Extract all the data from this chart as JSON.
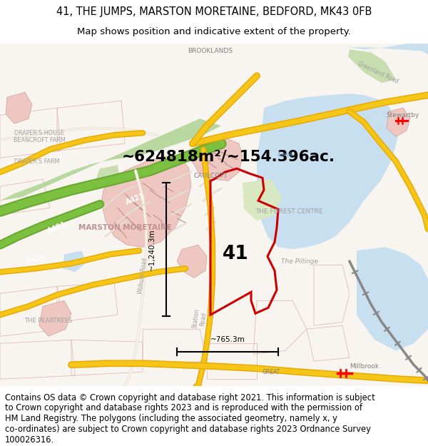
{
  "title_line1": "41, THE JUMPS, MARSTON MORETAINE, BEDFORD, MK43 0FB",
  "title_line2": "Map shows position and indicative extent of the property.",
  "area_text": "~624818m²/~154.396ac.",
  "label_41": "41",
  "width_label": "~765.3m",
  "height_label": "~1,240.3m",
  "bg_color": "#ffffff",
  "water_color": "#c8dff0",
  "urban_fill": "#e8c0b8",
  "road_yellow": "#f5c518",
  "road_outline": "#e0a800",
  "green_road_fill": "#8bbf6e",
  "property_color": "#cc0000",
  "dim_color": "#000000",
  "footer_lines": [
    "Contains OS data © Crown copyright and database right 2021. This information is subject",
    "to Crown copyright and database rights 2023 and is reproduced with the permission of",
    "HM Land Registry. The polygons (including the associated geometry, namely x, y",
    "co-ordinates) are subject to Crown copyright and database rights 2023 Ordnance Survey",
    "100026316."
  ]
}
